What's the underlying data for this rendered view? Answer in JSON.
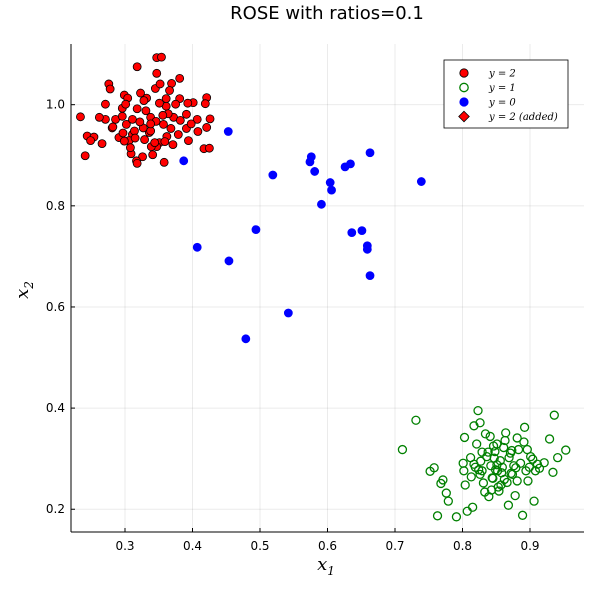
{
  "chart_data": {
    "type": "scatter",
    "title": "ROSE with ratios=0.1",
    "xlabel": "x",
    "xlabel_sub": "1",
    "ylabel": "x",
    "ylabel_sub": "2",
    "xlim": [
      0.22,
      0.98
    ],
    "ylim": [
      0.155,
      1.12
    ],
    "xticks": [
      0.3,
      0.4,
      0.5,
      0.6,
      0.7,
      0.8,
      0.9
    ],
    "xtick_labels": [
      "0.3",
      "0.4",
      "0.5",
      "0.6",
      "0.7",
      "0.8",
      "0.9"
    ],
    "yticks": [
      0.2,
      0.4,
      0.6,
      0.8,
      1.0
    ],
    "ytick_labels": [
      "0.2",
      "0.4",
      "0.6",
      "0.8",
      "1.0"
    ],
    "grid": true,
    "legend_position": "top-right",
    "series": [
      {
        "name": "y = 2",
        "marker": "circle",
        "fill": "#ff0000",
        "stroke": "#000000",
        "points": [
          [
            0.332,
            1.013
          ],
          [
            0.318,
            0.992
          ],
          [
            0.345,
            1.032
          ],
          [
            0.361,
            0.997
          ],
          [
            0.302,
            0.961
          ],
          [
            0.338,
            0.975
          ],
          [
            0.357,
            0.961
          ],
          [
            0.372,
            0.975
          ],
          [
            0.296,
            0.993
          ],
          [
            0.323,
            1.023
          ],
          [
            0.352,
            1.041
          ],
          [
            0.381,
            1.012
          ],
          [
            0.311,
            0.941
          ],
          [
            0.336,
            0.945
          ],
          [
            0.362,
            0.937
          ],
          [
            0.271,
            0.971
          ],
          [
            0.276,
            1.041
          ],
          [
            0.299,
            1.019
          ],
          [
            0.347,
            1.062
          ],
          [
            0.369,
            1.042
          ],
          [
            0.401,
            1.004
          ],
          [
            0.391,
            0.981
          ],
          [
            0.291,
            0.935
          ],
          [
            0.329,
            0.931
          ],
          [
            0.351,
            0.925
          ],
          [
            0.379,
            0.941
          ],
          [
            0.408,
            0.947
          ],
          [
            0.244,
            0.938
          ],
          [
            0.266,
            0.923
          ],
          [
            0.281,
            0.954
          ],
          [
            0.318,
            1.075
          ],
          [
            0.347,
            1.093
          ],
          [
            0.354,
            1.094
          ],
          [
            0.381,
            1.052
          ],
          [
            0.421,
            1.014
          ],
          [
            0.419,
            1.002
          ],
          [
            0.262,
            0.975
          ],
          [
            0.254,
            0.936
          ],
          [
            0.249,
            0.929
          ],
          [
            0.278,
            1.031
          ],
          [
            0.304,
            1.013
          ],
          [
            0.341,
            0.901
          ],
          [
            0.347,
            0.917
          ],
          [
            0.326,
            0.897
          ],
          [
            0.317,
            0.889
          ],
          [
            0.318,
            0.884
          ],
          [
            0.309,
            0.903
          ],
          [
            0.339,
            0.917
          ],
          [
            0.359,
            0.927
          ],
          [
            0.368,
            0.953
          ],
          [
            0.391,
            0.953
          ],
          [
            0.407,
            0.971
          ],
          [
            0.421,
            0.955
          ],
          [
            0.426,
            0.972
          ],
          [
            0.417,
            0.913
          ],
          [
            0.425,
            0.914
          ],
          [
            0.394,
            0.929
          ],
          [
            0.398,
            0.962
          ],
          [
            0.382,
            0.969
          ],
          [
            0.364,
            0.982
          ],
          [
            0.331,
            0.988
          ],
          [
            0.314,
            0.948
          ],
          [
            0.297,
            0.944
          ],
          [
            0.286,
            0.971
          ],
          [
            0.296,
            0.977
          ],
          [
            0.306,
            0.929
          ],
          [
            0.308,
            0.915
          ],
          [
            0.241,
            0.899
          ],
          [
            0.234,
            0.976
          ],
          [
            0.271,
            1.001
          ],
          [
            0.301,
            1.001
          ],
          [
            0.311,
            0.971
          ],
          [
            0.327,
            0.954
          ],
          [
            0.338,
            0.948
          ],
          [
            0.346,
            0.967
          ],
          [
            0.356,
            0.979
          ],
          [
            0.361,
            1.012
          ],
          [
            0.366,
            1.028
          ],
          [
            0.351,
            1.003
          ],
          [
            0.338,
            0.962
          ],
          [
            0.322,
            0.966
          ],
          [
            0.315,
            0.934
          ],
          [
            0.344,
            0.925
          ],
          [
            0.371,
            0.921
          ],
          [
            0.393,
            1.003
          ],
          [
            0.358,
            0.886
          ],
          [
            0.299,
            0.928
          ],
          [
            0.282,
            0.956
          ],
          [
            0.328,
            1.008
          ],
          [
            0.375,
            1.001
          ]
        ]
      },
      {
        "name": "y = 1",
        "marker": "circle-open",
        "fill": "none",
        "stroke": "#008000",
        "points": [
          [
            0.711,
            0.318
          ],
          [
            0.731,
            0.376
          ],
          [
            0.752,
            0.275
          ],
          [
            0.758,
            0.282
          ],
          [
            0.763,
            0.187
          ],
          [
            0.768,
            0.251
          ],
          [
            0.771,
            0.258
          ],
          [
            0.776,
            0.232
          ],
          [
            0.779,
            0.216
          ],
          [
            0.791,
            0.185
          ],
          [
            0.801,
            0.291
          ],
          [
            0.802,
            0.276
          ],
          [
            0.803,
            0.342
          ],
          [
            0.804,
            0.248
          ],
          [
            0.807,
            0.196
          ],
          [
            0.812,
            0.302
          ],
          [
            0.813,
            0.264
          ],
          [
            0.815,
            0.204
          ],
          [
            0.817,
            0.365
          ],
          [
            0.817,
            0.289
          ],
          [
            0.821,
            0.329
          ],
          [
            0.823,
            0.395
          ],
          [
            0.824,
            0.278
          ],
          [
            0.826,
            0.371
          ],
          [
            0.827,
            0.295
          ],
          [
            0.829,
            0.276
          ],
          [
            0.831,
            0.252
          ],
          [
            0.833,
            0.234
          ],
          [
            0.836,
            0.304
          ],
          [
            0.838,
            0.313
          ],
          [
            0.839,
            0.225
          ],
          [
            0.841,
            0.344
          ],
          [
            0.842,
            0.286
          ],
          [
            0.844,
            0.262
          ],
          [
            0.845,
            0.261
          ],
          [
            0.847,
            0.301
          ],
          [
            0.848,
            0.314
          ],
          [
            0.849,
            0.278
          ],
          [
            0.851,
            0.329
          ],
          [
            0.852,
            0.276
          ],
          [
            0.853,
            0.244
          ],
          [
            0.854,
            0.236
          ],
          [
            0.856,
            0.296
          ],
          [
            0.857,
            0.248
          ],
          [
            0.858,
            0.272
          ],
          [
            0.861,
            0.322
          ],
          [
            0.863,
            0.336
          ],
          [
            0.864,
            0.351
          ],
          [
            0.866,
            0.253
          ],
          [
            0.868,
            0.208
          ],
          [
            0.871,
            0.311
          ],
          [
            0.872,
            0.271
          ],
          [
            0.874,
            0.269
          ],
          [
            0.876,
            0.286
          ],
          [
            0.878,
            0.227
          ],
          [
            0.879,
            0.282
          ],
          [
            0.881,
            0.256
          ],
          [
            0.883,
            0.318
          ],
          [
            0.886,
            0.291
          ],
          [
            0.889,
            0.188
          ],
          [
            0.891,
            0.333
          ],
          [
            0.892,
            0.362
          ],
          [
            0.894,
            0.276
          ],
          [
            0.896,
            0.318
          ],
          [
            0.899,
            0.283
          ],
          [
            0.901,
            0.304
          ],
          [
            0.906,
            0.216
          ],
          [
            0.908,
            0.276
          ],
          [
            0.911,
            0.289
          ],
          [
            0.914,
            0.281
          ],
          [
            0.921,
            0.292
          ],
          [
            0.929,
            0.339
          ],
          [
            0.934,
            0.273
          ],
          [
            0.936,
            0.386
          ],
          [
            0.941,
            0.302
          ],
          [
            0.953,
            0.317
          ],
          [
            0.846,
            0.325
          ],
          [
            0.834,
            0.349
          ],
          [
            0.819,
            0.283
          ],
          [
            0.826,
            0.269
          ],
          [
            0.859,
            0.283
          ],
          [
            0.869,
            0.302
          ],
          [
            0.843,
            0.238
          ],
          [
            0.881,
            0.341
          ],
          [
            0.897,
            0.256
          ],
          [
            0.904,
            0.299
          ],
          [
            0.862,
            0.259
          ],
          [
            0.829,
            0.313
          ],
          [
            0.851,
            0.288
          ],
          [
            0.873,
            0.316
          ]
        ]
      },
      {
        "name": "y = 0",
        "marker": "circle",
        "fill": "#0000ff",
        "stroke": "#0000ff",
        "points": [
          [
            0.387,
            0.889
          ],
          [
            0.453,
            0.947
          ],
          [
            0.407,
            0.718
          ],
          [
            0.454,
            0.691
          ],
          [
            0.494,
            0.753
          ],
          [
            0.479,
            0.537
          ],
          [
            0.519,
            0.861
          ],
          [
            0.542,
            0.588
          ],
          [
            0.574,
            0.887
          ],
          [
            0.576,
            0.897
          ],
          [
            0.581,
            0.868
          ],
          [
            0.591,
            0.803
          ],
          [
            0.604,
            0.846
          ],
          [
            0.606,
            0.831
          ],
          [
            0.626,
            0.877
          ],
          [
            0.634,
            0.883
          ],
          [
            0.636,
            0.747
          ],
          [
            0.651,
            0.751
          ],
          [
            0.659,
            0.721
          ],
          [
            0.659,
            0.714
          ],
          [
            0.663,
            0.905
          ],
          [
            0.663,
            0.662
          ],
          [
            0.739,
            0.848
          ]
        ]
      },
      {
        "name": "y = 2 (added)",
        "marker": "diamond",
        "fill": "#ff0000",
        "stroke": "#000000",
        "points": []
      }
    ]
  }
}
